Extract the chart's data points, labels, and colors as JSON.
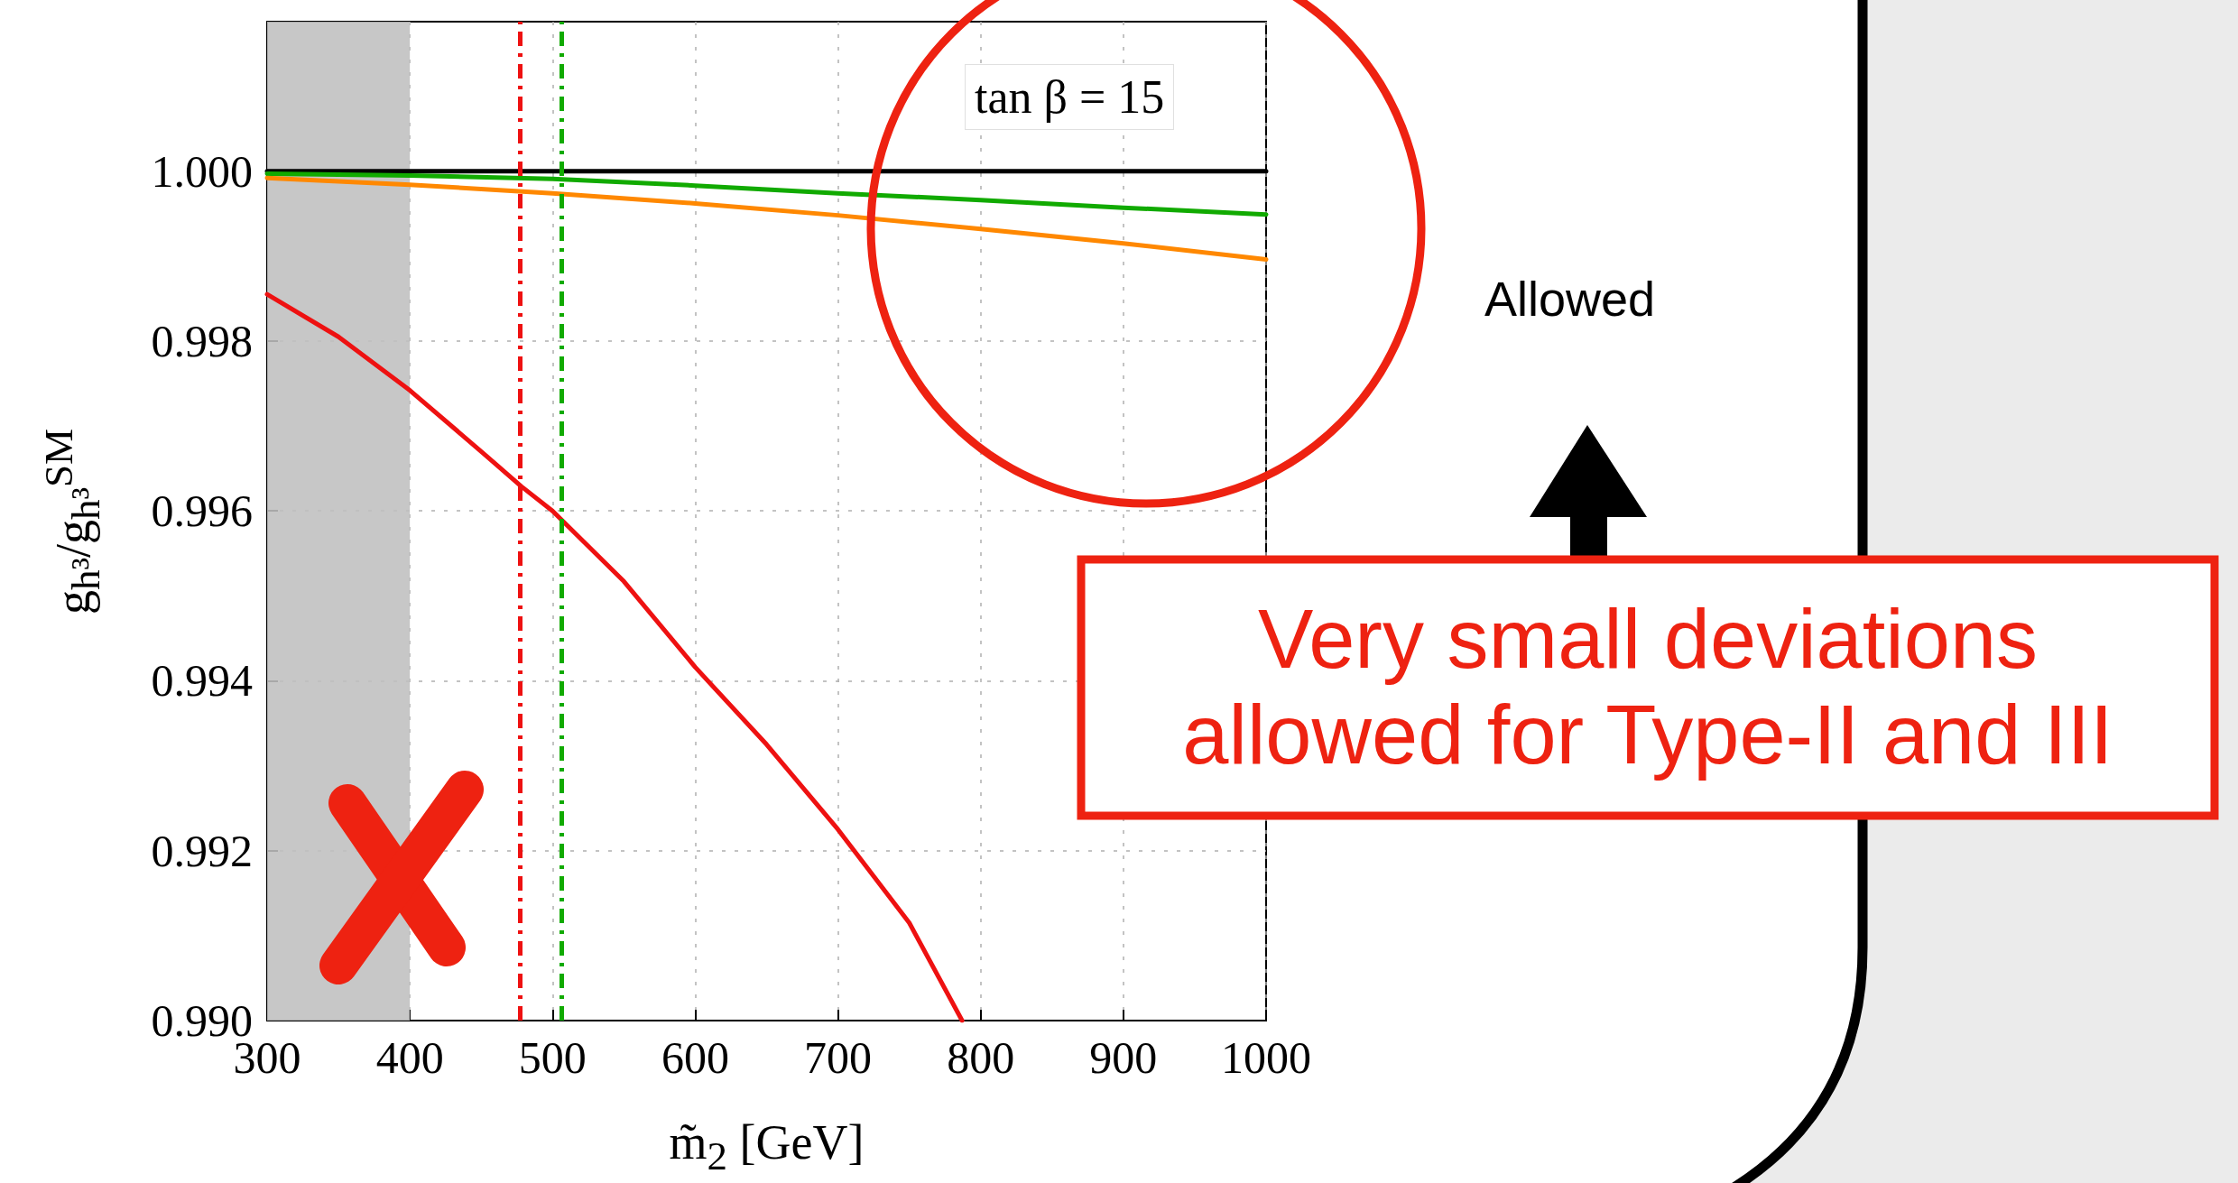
{
  "chart_data": {
    "type": "line",
    "xlabel": "m̃$_{2}$ [GeV]",
    "ylabel": "g$_{h³}$/g$_{h³}$$^{SM}$",
    "annotations": [
      "tan β = 15",
      "Allowed",
      "Very small deviations allowed for Type-II and III"
    ],
    "series": [
      {
        "color": "#000000",
        "x": [
          300,
          1000
        ],
        "values": [
          1.0,
          1.0
        ]
      },
      {
        "color": "#11aa00",
        "x": [
          300,
          400,
          500,
          600,
          700,
          800,
          900,
          1000
        ],
        "values": [
          0.99997,
          0.99995,
          0.99991,
          0.99983,
          0.99974,
          0.99966,
          0.99957,
          0.99949
        ]
      },
      {
        "color": "#ff8800",
        "x": [
          300,
          400,
          500,
          600,
          700,
          800,
          900,
          1000
        ],
        "values": [
          0.99992,
          0.99984,
          0.99974,
          0.99962,
          0.99948,
          0.99932,
          0.99915,
          0.99896
        ]
      },
      {
        "color": "#ee1111",
        "x": [
          300,
          350,
          400,
          450,
          478,
          500,
          550,
          600,
          650,
          700,
          750,
          787
        ],
        "values": [
          0.99855,
          0.99805,
          0.99742,
          0.9967,
          0.99629,
          0.996,
          0.99517,
          0.99416,
          0.99325,
          0.99225,
          0.99115,
          0.99
        ]
      }
    ],
    "xlim": [
      300,
      1000
    ],
    "xticks": [
      300,
      400,
      500,
      600,
      700,
      800,
      900,
      1000
    ],
    "ylim": [
      0.99,
      1.00176
    ],
    "yticks": [
      {
        "value": 0.99,
        "label": "0.990"
      },
      {
        "value": 0.992,
        "label": "0.992"
      },
      {
        "value": 0.994,
        "label": "0.994"
      },
      {
        "value": 0.996,
        "label": "0.996"
      },
      {
        "value": 0.998,
        "label": "0.998"
      },
      {
        "value": 1.0,
        "label": "1.000"
      }
    ],
    "ref_lines": [
      {
        "axis": "x",
        "value": 477,
        "color": "#ee1111",
        "line_style": "dashed"
      },
      {
        "axis": "x",
        "value": 506,
        "color": "#11aa00",
        "line_style": "dashed"
      }
    ],
    "bands": [
      {
        "axis": "x",
        "from": 300,
        "to": 400,
        "color": "#bfbfbf"
      }
    ],
    "grid": true,
    "line_style": "solid",
    "marker": "none"
  }
}
